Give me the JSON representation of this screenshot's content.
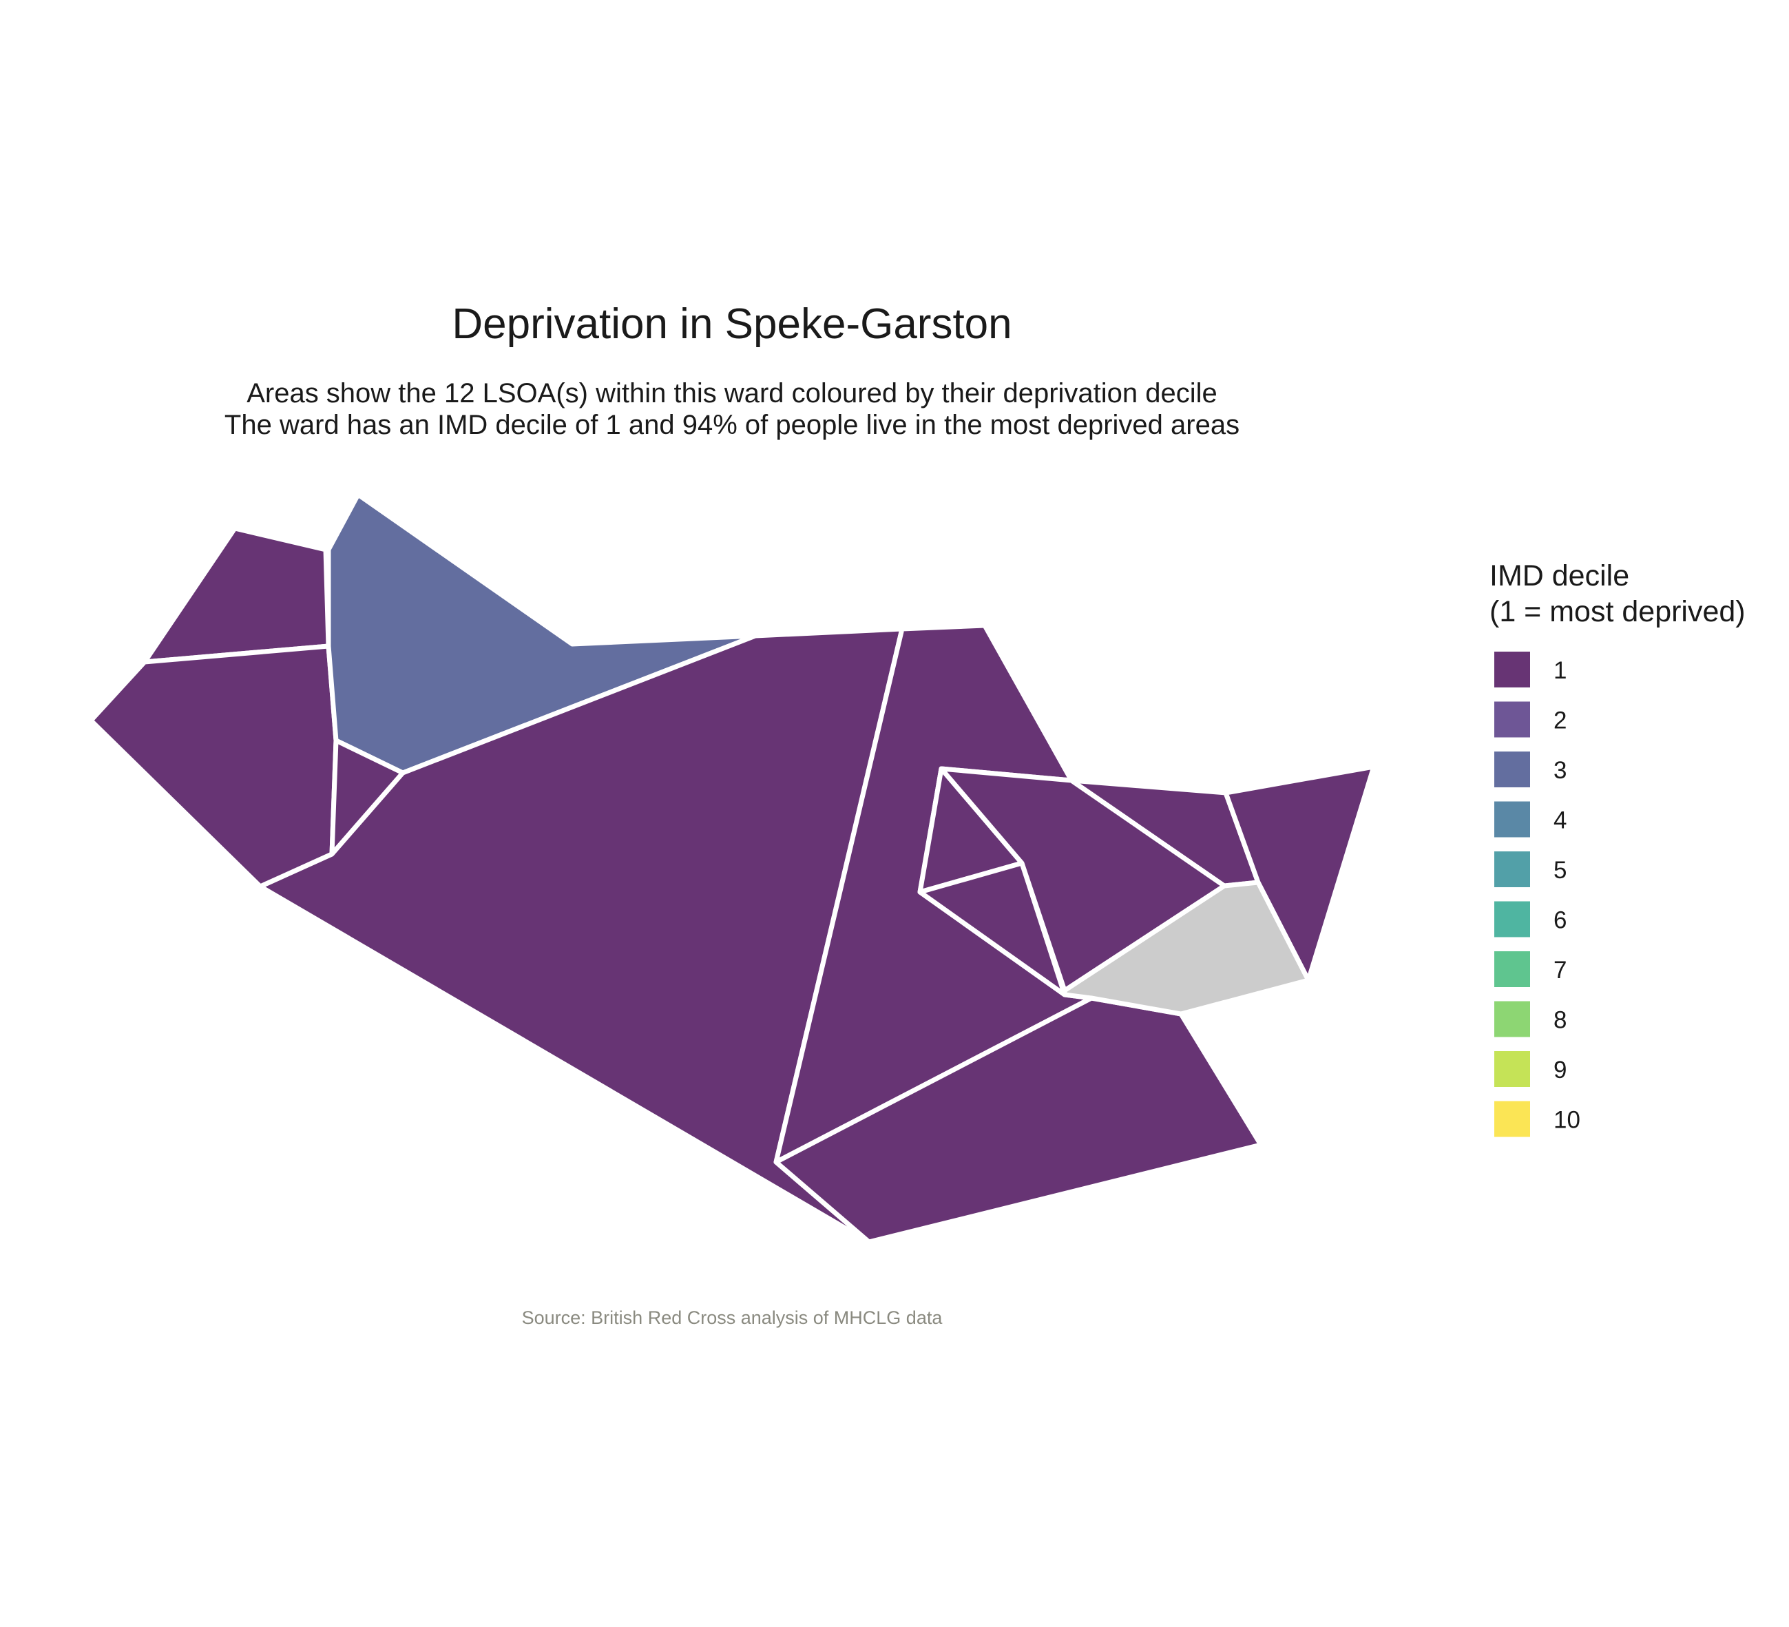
{
  "title": "Deprivation in Speke-Garston",
  "subtitle_lines": [
    "Areas show the 12 LSOA(s) within this ward coloured by their deprivation decile",
    "The ward has an IMD decile of 1 and 94% of people live in the most deprived areas"
  ],
  "caption": "Source: British Red Cross analysis of MHCLG data",
  "legend": {
    "title_lines": [
      "IMD decile",
      "(1 = most deprived)"
    ],
    "items": [
      {
        "label": "1",
        "color": "#673474"
      },
      {
        "label": "2",
        "color": "#6E5696"
      },
      {
        "label": "3",
        "color": "#636E9F"
      },
      {
        "label": "4",
        "color": "#5A88A6"
      },
      {
        "label": "5",
        "color": "#52A0A8"
      },
      {
        "label": "6",
        "color": "#4FB5A1"
      },
      {
        "label": "7",
        "color": "#5FC58F"
      },
      {
        "label": "8",
        "color": "#8DD673"
      },
      {
        "label": "9",
        "color": "#C5E357"
      },
      {
        "label": "10",
        "color": "#FBE555"
      }
    ]
  },
  "lsoa_deciles": [
    1,
    1,
    3,
    1,
    1,
    1,
    1,
    1,
    1,
    1,
    1,
    1
  ]
}
